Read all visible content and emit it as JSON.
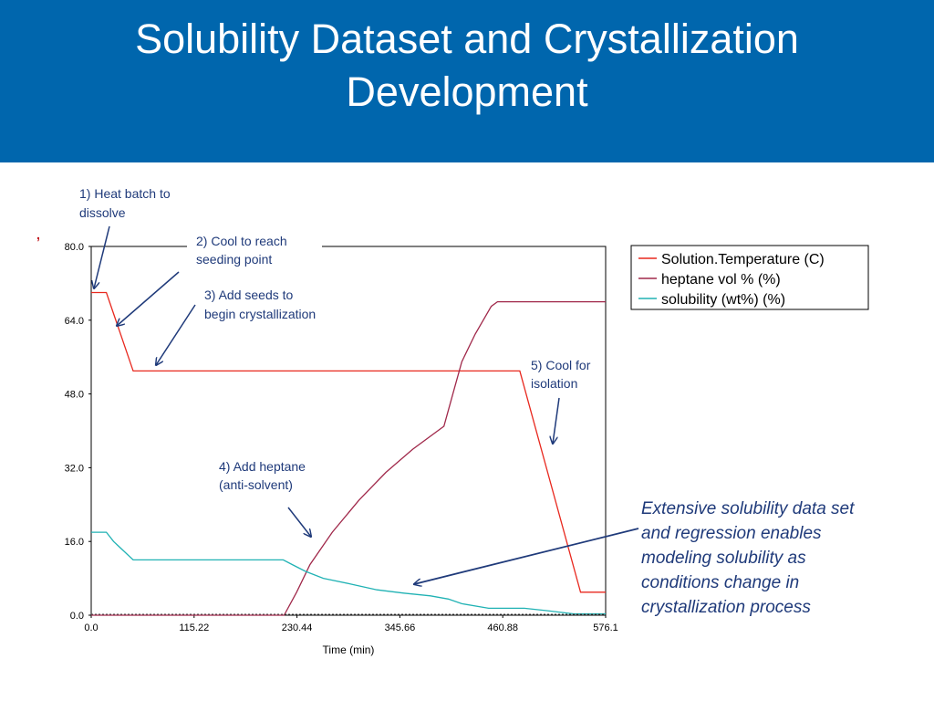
{
  "slide": {
    "title_lines": [
      "Solubility Dataset and Crystallization",
      "Development"
    ],
    "callout_lines": [
      "Extensive solubility data set",
      "and regression enables",
      "modeling solubility as",
      "conditions change in",
      "crystallization process"
    ]
  },
  "annotations": [
    {
      "lines": [
        "1) Heat batch to",
        "dissolve"
      ]
    },
    {
      "lines": [
        "2) Cool to reach",
        "seeding point"
      ]
    },
    {
      "lines": [
        "3) Add seeds to",
        "begin crystallization"
      ]
    },
    {
      "lines": [
        "4) Add heptane",
        "(anti-solvent)"
      ]
    },
    {
      "lines": [
        "5) Cool for",
        "isolation"
      ]
    }
  ],
  "colors": {
    "header": "#0066ad",
    "temperature": "#e8281e",
    "heptane": "#a0284a",
    "solubility": "#20b2b4",
    "annotation": "#1f3a7a"
  },
  "chart_data": {
    "type": "line",
    "xlabel": "Time (min)",
    "ylabel": "",
    "xlim": [
      0,
      576.1
    ],
    "ylim": [
      0,
      80
    ],
    "x_ticks": [
      "0.0",
      "115.22",
      "230.44",
      "345.66",
      "460.88",
      "576.1"
    ],
    "y_ticks": [
      "0.0",
      "16.0",
      "32.0",
      "48.0",
      "64.0",
      "80.0"
    ],
    "legend_position": "top-right",
    "series": [
      {
        "name": "Solution.Temperature (C)",
        "color": "#e8281e",
        "points": [
          [
            0,
            70
          ],
          [
            17,
            70
          ],
          [
            47,
            53
          ],
          [
            480,
            53
          ],
          [
            548,
            5
          ],
          [
            576.1,
            5
          ]
        ]
      },
      {
        "name": "heptane vol % (%)",
        "color": "#a0284a",
        "points": [
          [
            0,
            0
          ],
          [
            216,
            0
          ],
          [
            230,
            5
          ],
          [
            245,
            11
          ],
          [
            270,
            18
          ],
          [
            300,
            25
          ],
          [
            330,
            31
          ],
          [
            360,
            36
          ],
          [
            395,
            41
          ],
          [
            405,
            48
          ],
          [
            415,
            55
          ],
          [
            430,
            61
          ],
          [
            448,
            67
          ],
          [
            455,
            68
          ],
          [
            576.1,
            68
          ]
        ]
      },
      {
        "name": "solubility (wt%) (%)",
        "color": "#20b2b4",
        "points": [
          [
            0,
            18
          ],
          [
            17,
            18
          ],
          [
            25,
            16
          ],
          [
            47,
            12
          ],
          [
            215,
            12
          ],
          [
            225,
            11
          ],
          [
            240,
            9.5
          ],
          [
            260,
            8
          ],
          [
            290,
            6.8
          ],
          [
            320,
            5.5
          ],
          [
            350,
            4.8
          ],
          [
            380,
            4.2
          ],
          [
            400,
            3.5
          ],
          [
            415,
            2.5
          ],
          [
            445,
            1.5
          ],
          [
            485,
            1.5
          ],
          [
            510,
            1
          ],
          [
            540,
            0.3
          ],
          [
            576.1,
            0.3
          ]
        ]
      }
    ]
  }
}
